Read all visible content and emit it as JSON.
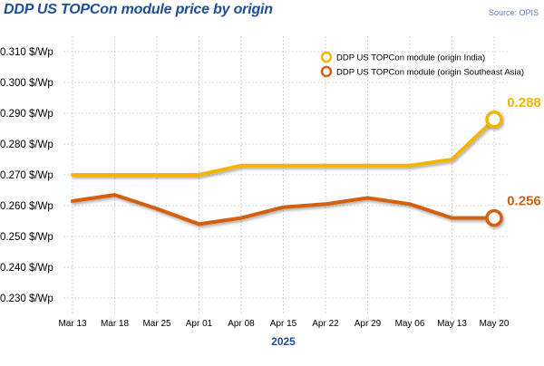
{
  "header": {
    "title": "DDP US TOPCon module price by origin",
    "source": "Source: OPIS"
  },
  "colors": {
    "india": "#f5b400",
    "sea": "#d45f10",
    "grid": "#c9c9c9",
    "axis_text": "#000000",
    "year_text": "#1f4e96"
  },
  "chart_data": {
    "type": "line",
    "title": "DDP US TOPCon module price by origin",
    "xlabel": "2025",
    "ylabel": "",
    "categories": [
      "Mar 13",
      "Mar 18",
      "Mar 25",
      "Apr 01",
      "Apr 08",
      "Apr 15",
      "Apr 22",
      "Apr 29",
      "May 06",
      "May 13",
      "May 20"
    ],
    "y_tick_labels": [
      "0.230 $/Wp",
      "0.240 $/Wp",
      "0.250 $/Wp",
      "0.260 $/Wp",
      "0.270 $/Wp",
      "0.280 $/Wp",
      "0.290 $/Wp",
      "0.300 $/Wp",
      "0.310 $/Wp"
    ],
    "y_ticks": [
      0.23,
      0.24,
      0.25,
      0.26,
      0.27,
      0.28,
      0.29,
      0.3,
      0.31
    ],
    "ylim": [
      0.225,
      0.315
    ],
    "grid": true,
    "legend_position": "top-right",
    "series": [
      {
        "name": "DDP US TOPCon module (origin India)",
        "color": "#f5b400",
        "values": [
          0.27,
          0.27,
          0.27,
          0.27,
          0.273,
          0.273,
          0.273,
          0.273,
          0.273,
          0.275,
          0.288
        ],
        "end_label": "0.288"
      },
      {
        "name": "DDP US TOPCon module (origin Southeast Asia)",
        "color": "#d45f10",
        "values": [
          0.2615,
          0.2635,
          0.259,
          0.254,
          0.256,
          0.2595,
          0.2605,
          0.2625,
          0.2605,
          0.256,
          0.256
        ],
        "end_label": "0.256"
      }
    ]
  }
}
